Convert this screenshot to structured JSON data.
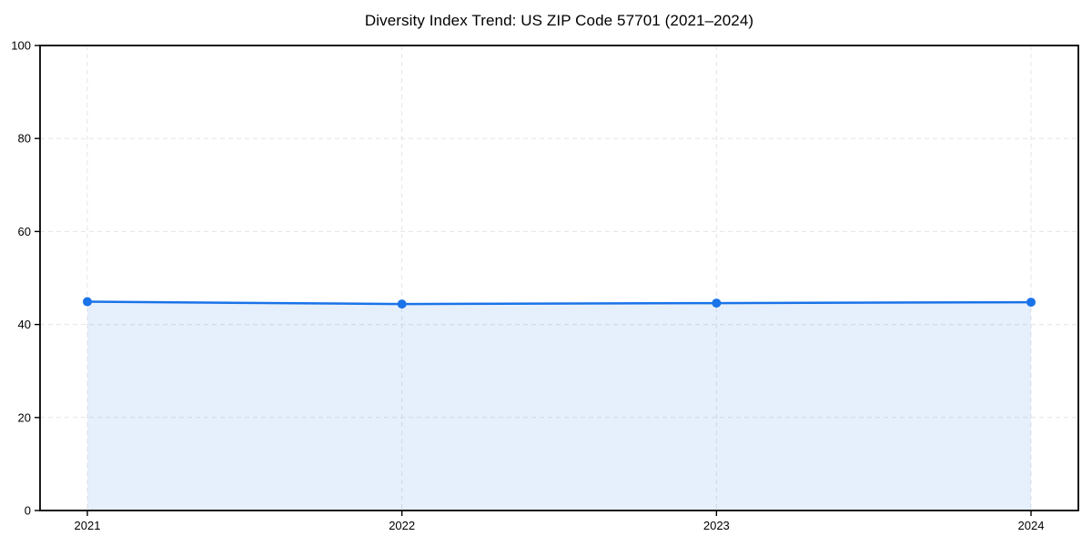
{
  "page": {
    "background": "#ffffff"
  },
  "chart_data": {
    "type": "area",
    "title": "Diversity Index Trend: US ZIP Code 57701 (2021–2024)",
    "x": [
      "2021",
      "2022",
      "2023",
      "2024"
    ],
    "series": [
      {
        "name": "Diversity Index",
        "values": [
          44.9,
          44.4,
          44.6,
          44.8
        ]
      }
    ],
    "xlabel": "",
    "ylabel": "",
    "ylim": [
      0,
      100
    ],
    "yticks": [
      0,
      20,
      40,
      60,
      80,
      100
    ],
    "grid": "dashed",
    "legend": "none",
    "marker": "circle",
    "colors": {
      "line": "#1a73e8",
      "marker": "#1a73e8",
      "area_fill": "#1a73e8",
      "area_fill_opacity": 0.11,
      "gridline": "#e4e4e4",
      "axis": "#000000",
      "tick_label": "#000000",
      "title": "#000000"
    }
  }
}
